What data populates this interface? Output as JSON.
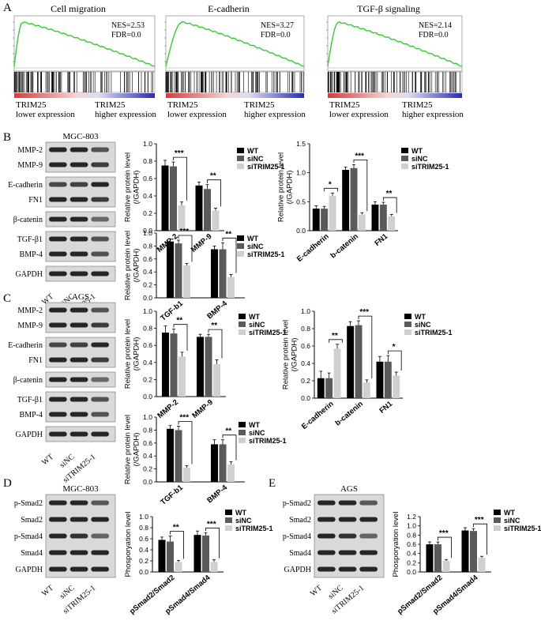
{
  "panel_letters": [
    "A",
    "B",
    "C",
    "D",
    "E"
  ],
  "gsea": [
    {
      "title": "Cell migration",
      "nes": "NES=2.53",
      "fdr": "FDR=0.0",
      "left_label": [
        "TRIM25",
        "lower expression"
      ],
      "right_label": [
        "TRIM25",
        "higher expression"
      ]
    },
    {
      "title": "E-cadherin",
      "nes": "NES=3.27",
      "fdr": "FDR=0.0",
      "left_label": [
        "TRIM25",
        "lower expression"
      ],
      "right_label": [
        "TRIM25",
        "higher expression"
      ]
    },
    {
      "title": "TGF-β signaling",
      "nes": "NES=2.14",
      "fdr": "FDR=0.0",
      "left_label": [
        "TRIM25",
        "lower expression"
      ],
      "right_label": [
        "TRIM25",
        "higher expression"
      ]
    }
  ],
  "blots": [
    {
      "cell": "MGC-803",
      "groups": [
        [
          "MMP-2",
          "MMP-9"
        ],
        [
          "E-cadherin",
          "FN1"
        ],
        [
          "β-catenin"
        ],
        [
          "TGF-β1",
          "BMP-4"
        ],
        [
          "GAPDH"
        ]
      ],
      "lanes": [
        "WT",
        "siNC",
        "siTRIM25-1"
      ]
    },
    {
      "cell": "AGS",
      "groups": [
        [
          "MMP-2",
          "MMP-9"
        ],
        [
          "E-cadherin",
          "FN1"
        ],
        [
          "β-catenin"
        ],
        [
          "TGF-β1",
          "BMP-4"
        ],
        [
          "GAPDH"
        ]
      ],
      "lanes": [
        "WT",
        "siNC",
        "siTRIM25-1"
      ]
    },
    {
      "cell": "MGC-803",
      "groups": [
        [
          "p-Smad2",
          "Smad2",
          "p-Smad4",
          "Smad4",
          "GAPDH"
        ]
      ],
      "lanes": [
        "WT",
        "siNC",
        "siTRIM25-1"
      ]
    },
    {
      "cell": "AGS",
      "groups": [
        [
          "p-Smad2",
          "Smad2",
          "p-Smad4",
          "Smad4",
          "GAPDH"
        ]
      ],
      "lanes": [
        "WT",
        "siNC",
        "siTRIM25-1"
      ]
    }
  ],
  "legend": [
    "WT",
    "siNC",
    "siTRIM25-1"
  ],
  "colors": {
    "WT": "#000000",
    "siNC": "#5a5a5a",
    "siTRIM25-1": "#d0d0d0",
    "curve": "#33cc33"
  },
  "chart_data": [
    {
      "type": "bar",
      "panel": "B",
      "ylabel": [
        "Relative protein level",
        "(/GAPDH)"
      ],
      "categories": [
        "MMP-2",
        "MMP-9"
      ],
      "ylim": [
        0,
        1.0
      ],
      "ticks": [
        "0.0",
        "0.2",
        "0.4",
        "0.6",
        "0.8",
        "1.0"
      ],
      "series": [
        {
          "name": "WT",
          "values": [
            0.75,
            0.52
          ],
          "err": [
            0.06,
            0.04
          ]
        },
        {
          "name": "siNC",
          "values": [
            0.74,
            0.48
          ],
          "err": [
            0.05,
            0.05
          ]
        },
        {
          "name": "siTRIM25-1",
          "values": [
            0.29,
            0.23
          ],
          "err": [
            0.04,
            0.03
          ]
        }
      ],
      "sig": [
        "***",
        "**"
      ]
    },
    {
      "type": "bar",
      "panel": "B",
      "ylabel": [
        "Relative protein level",
        "(/GAPDH)"
      ],
      "categories": [
        "E-cadherin",
        "b-catenin",
        "FN1"
      ],
      "ylim": [
        0,
        1.5
      ],
      "ticks": [
        "0.0",
        "0.5",
        "1.0",
        "1.5"
      ],
      "series": [
        {
          "name": "WT",
          "values": [
            0.38,
            1.05,
            0.45
          ],
          "err": [
            0.05,
            0.05,
            0.05
          ]
        },
        {
          "name": "siNC",
          "values": [
            0.38,
            1.08,
            0.45
          ],
          "err": [
            0.04,
            0.06,
            0.04
          ]
        },
        {
          "name": "siTRIM25-1",
          "values": [
            0.6,
            0.28,
            0.25
          ],
          "err": [
            0.05,
            0.03,
            0.03
          ]
        }
      ],
      "sig": [
        "*",
        "***",
        "**"
      ]
    },
    {
      "type": "bar",
      "panel": "B",
      "ylabel": [
        "Relative protein level",
        "(/GAPDH)"
      ],
      "categories": [
        "TGF-b1",
        "BMP-4"
      ],
      "ylim": [
        0,
        1.0
      ],
      "ticks": [
        "0.0",
        "0.2",
        "0.4",
        "0.6",
        "0.8",
        "1.0"
      ],
      "series": [
        {
          "name": "WT",
          "values": [
            0.87,
            0.75
          ],
          "err": [
            0.04,
            0.05
          ]
        },
        {
          "name": "siNC",
          "values": [
            0.84,
            0.75
          ],
          "err": [
            0.05,
            0.1
          ]
        },
        {
          "name": "siTRIM25-1",
          "values": [
            0.5,
            0.32
          ],
          "err": [
            0.03,
            0.04
          ]
        }
      ],
      "sig": [
        "***",
        "**"
      ]
    },
    {
      "type": "bar",
      "panel": "C",
      "ylabel": [
        "Relative protein level",
        "(/GAPDH)"
      ],
      "categories": [
        "MMP-2",
        "MMP-9"
      ],
      "ylim": [
        0,
        1.0
      ],
      "ticks": [
        "0.0",
        "0.2",
        "0.4",
        "0.6",
        "0.8",
        "1.0"
      ],
      "series": [
        {
          "name": "WT",
          "values": [
            0.75,
            0.7
          ],
          "err": [
            0.08,
            0.03
          ]
        },
        {
          "name": "siNC",
          "values": [
            0.74,
            0.7
          ],
          "err": [
            0.05,
            0.03
          ]
        },
        {
          "name": "siTRIM25-1",
          "values": [
            0.47,
            0.38
          ],
          "err": [
            0.05,
            0.05
          ]
        }
      ],
      "sig": [
        "**",
        "**"
      ]
    },
    {
      "type": "bar",
      "panel": "C",
      "ylabel": [
        "Relative protein level",
        "(/GAPDH)"
      ],
      "categories": [
        "E-cadherin",
        "b-catenin",
        "FN1"
      ],
      "ylim": [
        0,
        1.0
      ],
      "ticks": [
        "0.0",
        "0.2",
        "0.4",
        "0.6",
        "0.8",
        "1.0"
      ],
      "series": [
        {
          "name": "WT",
          "values": [
            0.23,
            0.83,
            0.42
          ],
          "err": [
            0.08,
            0.05,
            0.06
          ]
        },
        {
          "name": "siNC",
          "values": [
            0.23,
            0.84,
            0.42
          ],
          "err": [
            0.06,
            0.05,
            0.07
          ]
        },
        {
          "name": "siTRIM25-1",
          "values": [
            0.57,
            0.18,
            0.26
          ],
          "err": [
            0.05,
            0.03,
            0.04
          ]
        }
      ],
      "sig": [
        "**",
        "***",
        "*"
      ]
    },
    {
      "type": "bar",
      "panel": "C",
      "ylabel": [
        "Relative protein level",
        "(/GAPDH)"
      ],
      "categories": [
        "TGF-b1",
        "BMP-4"
      ],
      "ylim": [
        0,
        1.0
      ],
      "ticks": [
        "0.0",
        "0.2",
        "0.4",
        "0.6",
        "0.8",
        "1.0"
      ],
      "series": [
        {
          "name": "WT",
          "values": [
            0.82,
            0.58
          ],
          "err": [
            0.05,
            0.07
          ]
        },
        {
          "name": "siNC",
          "values": [
            0.8,
            0.58
          ],
          "err": [
            0.06,
            0.07
          ]
        },
        {
          "name": "siTRIM25-1",
          "values": [
            0.22,
            0.27
          ],
          "err": [
            0.03,
            0.04
          ]
        }
      ],
      "sig": [
        "***",
        "**"
      ]
    },
    {
      "type": "bar",
      "panel": "D",
      "ylabel": [
        "Phosporyation level"
      ],
      "categories": [
        "pSmad2/Smad2",
        "pSmad4/Smad4"
      ],
      "ylim": [
        0,
        1.0
      ],
      "ticks": [
        "0.0",
        "0.2",
        "0.4",
        "0.6",
        "0.8",
        "1.0"
      ],
      "series": [
        {
          "name": "WT",
          "values": [
            0.58,
            0.67
          ],
          "err": [
            0.05,
            0.07
          ]
        },
        {
          "name": "siNC",
          "values": [
            0.55,
            0.66
          ],
          "err": [
            0.1,
            0.05
          ]
        },
        {
          "name": "siTRIM25-1",
          "values": [
            0.18,
            0.18
          ],
          "err": [
            0.03,
            0.04
          ]
        }
      ],
      "sig": [
        "**",
        "***"
      ]
    },
    {
      "type": "bar",
      "panel": "E",
      "ylabel": [
        "Phosporyation level"
      ],
      "categories": [
        "pSmad2/Smad2",
        "pSmad4/Smad4"
      ],
      "ylim": [
        0,
        1.2
      ],
      "ticks": [
        "0.0",
        "0.2",
        "0.4",
        "0.6",
        "0.8",
        "1.0",
        "1.2"
      ],
      "series": [
        {
          "name": "WT",
          "values": [
            0.6,
            0.9
          ],
          "err": [
            0.05,
            0.06
          ]
        },
        {
          "name": "siNC",
          "values": [
            0.6,
            0.89
          ],
          "err": [
            0.05,
            0.05
          ]
        },
        {
          "name": "siTRIM25-1",
          "values": [
            0.24,
            0.31
          ],
          "err": [
            0.03,
            0.03
          ]
        }
      ],
      "sig": [
        "***",
        "***"
      ]
    }
  ]
}
